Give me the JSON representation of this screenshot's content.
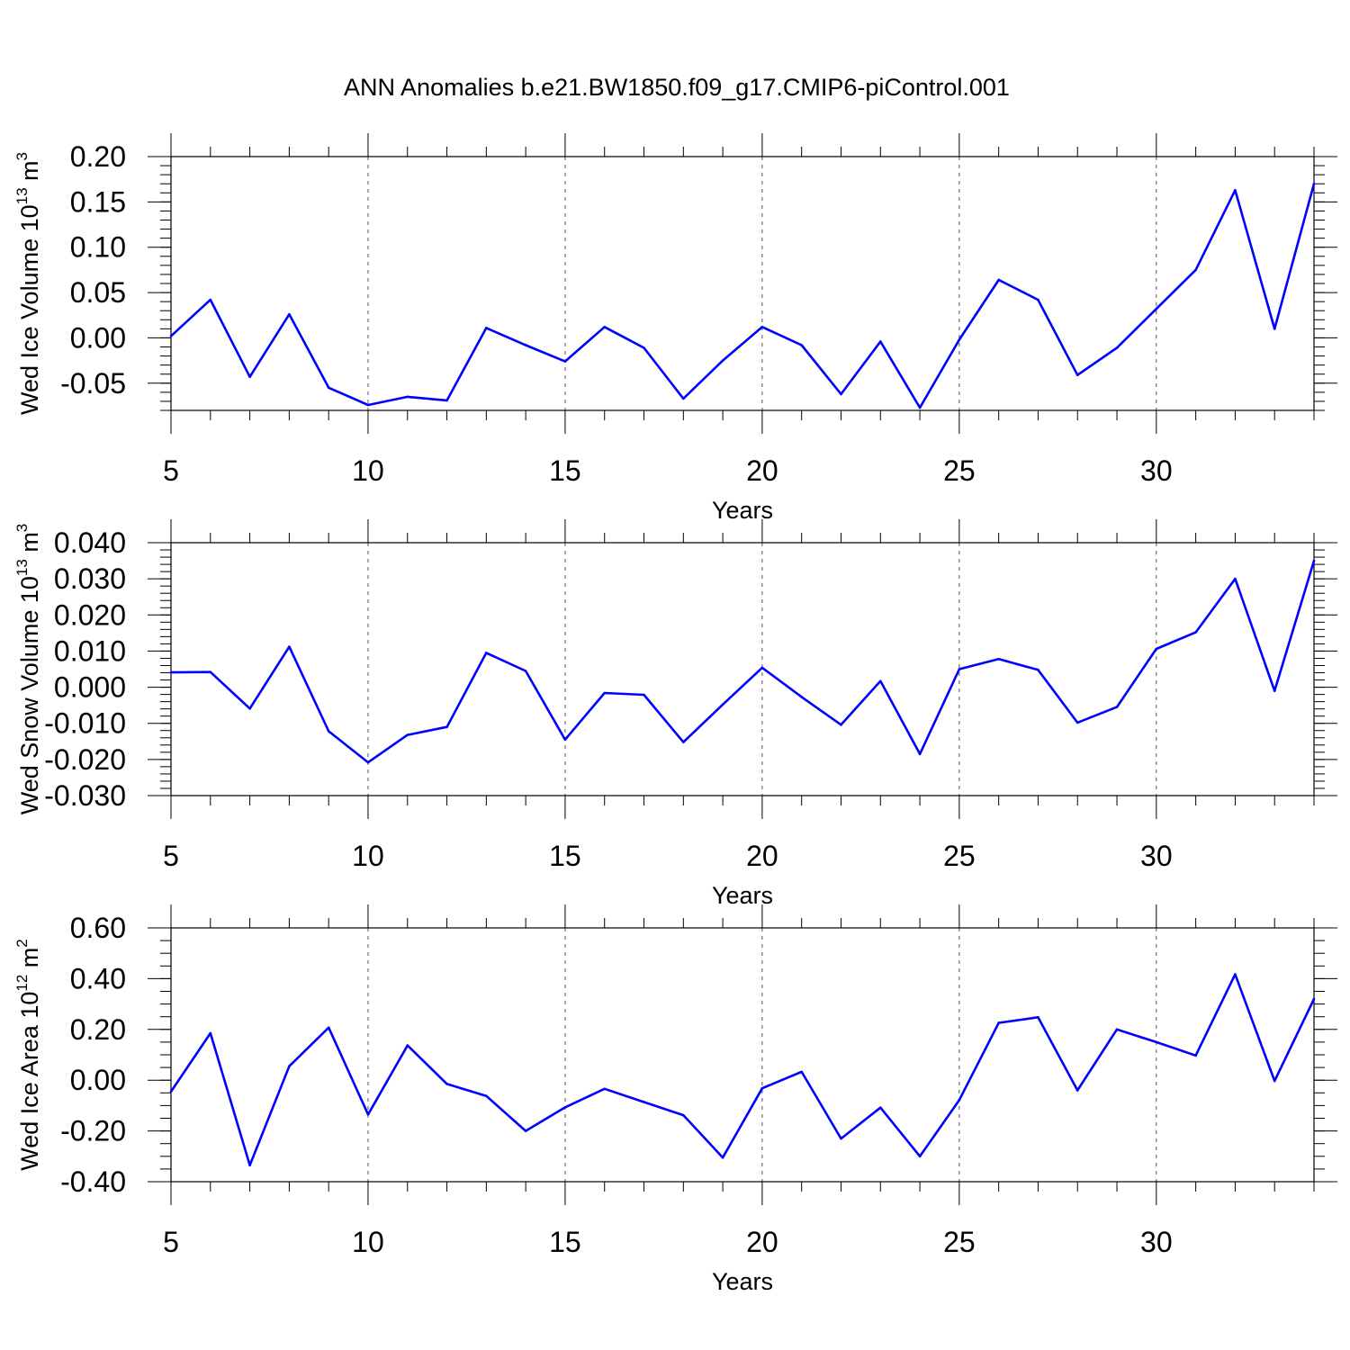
{
  "title": "ANN Anomalies b.e21.BW1850.f09_g17.CMIP6-piControl.001",
  "colors": {
    "line": "#0000ff",
    "axis": "#000000",
    "grid": "#555555"
  },
  "chart_data": [
    {
      "type": "line",
      "ylabel": "Wed Ice Volume 10",
      "ylabel_exp": "13",
      "ylabel_unit": " m",
      "ylabel_unit_exp": "3",
      "xlabel": "Years",
      "xlim": [
        5,
        34
      ],
      "ylim": [
        -0.08,
        0.2
      ],
      "grid": "vertical-dashed",
      "x_ticks": [
        5,
        10,
        15,
        20,
        25,
        30
      ],
      "x_tick_labels": [
        "5",
        "10",
        "15",
        "20",
        "25",
        "30"
      ],
      "y_ticks": [
        -0.05,
        0.0,
        0.05,
        0.1,
        0.15,
        0.2
      ],
      "y_tick_labels": [
        "-0.05",
        "0.00",
        "0.05",
        "0.10",
        "0.15",
        "0.20"
      ],
      "y_minor_step": 0.01,
      "x": [
        5,
        6,
        7,
        8,
        9,
        10,
        11,
        12,
        13,
        14,
        15,
        16,
        17,
        18,
        19,
        20,
        21,
        22,
        23,
        24,
        25,
        26,
        27,
        28,
        29,
        30,
        31,
        32,
        33,
        34
      ],
      "values": [
        0.002,
        0.042,
        -0.043,
        0.026,
        -0.055,
        -0.074,
        -0.065,
        -0.069,
        0.011,
        -0.008,
        -0.026,
        0.012,
        -0.011,
        -0.067,
        -0.025,
        0.012,
        -0.008,
        -0.062,
        -0.004,
        -0.077,
        -0.002,
        0.064,
        0.042,
        -0.041,
        -0.011,
        0.032,
        0.075,
        0.163,
        0.01,
        0.17
      ]
    },
    {
      "type": "line",
      "ylabel": "Wed Snow Volume 10",
      "ylabel_exp": "13",
      "ylabel_unit": " m",
      "ylabel_unit_exp": "3",
      "xlabel": "Years",
      "xlim": [
        5,
        34
      ],
      "ylim": [
        -0.03,
        0.04
      ],
      "grid": "vertical-dashed",
      "x_ticks": [
        5,
        10,
        15,
        20,
        25,
        30
      ],
      "x_tick_labels": [
        "5",
        "10",
        "15",
        "20",
        "25",
        "30"
      ],
      "y_ticks": [
        -0.03,
        -0.02,
        -0.01,
        0.0,
        0.01,
        0.02,
        0.03,
        0.04
      ],
      "y_tick_labels": [
        "-0.030",
        "-0.020",
        "-0.010",
        "0.000",
        "0.010",
        "0.020",
        "0.030",
        "0.040"
      ],
      "y_minor_step": 0.002,
      "x": [
        5,
        6,
        7,
        8,
        9,
        10,
        11,
        12,
        13,
        14,
        15,
        16,
        17,
        18,
        19,
        20,
        21,
        22,
        23,
        24,
        25,
        26,
        27,
        28,
        29,
        30,
        31,
        32,
        33,
        34
      ],
      "values": [
        0.0041,
        0.0042,
        -0.0059,
        0.0112,
        -0.0122,
        -0.0208,
        -0.0132,
        -0.011,
        0.0095,
        0.0045,
        -0.0145,
        -0.0016,
        -0.0021,
        -0.0152,
        -0.0048,
        0.0054,
        -0.0027,
        -0.0104,
        0.0017,
        -0.0185,
        0.005,
        0.0078,
        0.0048,
        -0.0098,
        -0.0055,
        0.0106,
        0.0152,
        0.03,
        -0.001,
        0.035
      ]
    },
    {
      "type": "line",
      "ylabel": "Wed Ice Area 10",
      "ylabel_exp": "12",
      "ylabel_unit": " m",
      "ylabel_unit_exp": "2",
      "xlabel": "Years",
      "xlim": [
        5,
        34
      ],
      "ylim": [
        -0.4,
        0.6
      ],
      "grid": "vertical-dashed",
      "x_ticks": [
        5,
        10,
        15,
        20,
        25,
        30
      ],
      "x_tick_labels": [
        "5",
        "10",
        "15",
        "20",
        "25",
        "30"
      ],
      "y_ticks": [
        -0.4,
        -0.2,
        0.0,
        0.2,
        0.4,
        0.6
      ],
      "y_tick_labels": [
        "-0.40",
        "-0.20",
        "0.00",
        "0.20",
        "0.40",
        "0.60"
      ],
      "y_minor_step": 0.05,
      "x": [
        5,
        6,
        7,
        8,
        9,
        10,
        11,
        12,
        13,
        14,
        15,
        16,
        17,
        18,
        19,
        20,
        21,
        22,
        23,
        24,
        25,
        26,
        27,
        28,
        29,
        30,
        31,
        32,
        33,
        34
      ],
      "values": [
        -0.045,
        0.185,
        -0.335,
        0.055,
        0.207,
        -0.135,
        0.137,
        -0.015,
        -0.062,
        -0.2,
        -0.107,
        -0.034,
        -0.086,
        -0.138,
        -0.305,
        -0.032,
        0.033,
        -0.23,
        -0.108,
        -0.3,
        -0.078,
        0.226,
        0.248,
        -0.04,
        0.2,
        0.15,
        0.097,
        0.417,
        -0.003,
        0.32
      ]
    }
  ]
}
